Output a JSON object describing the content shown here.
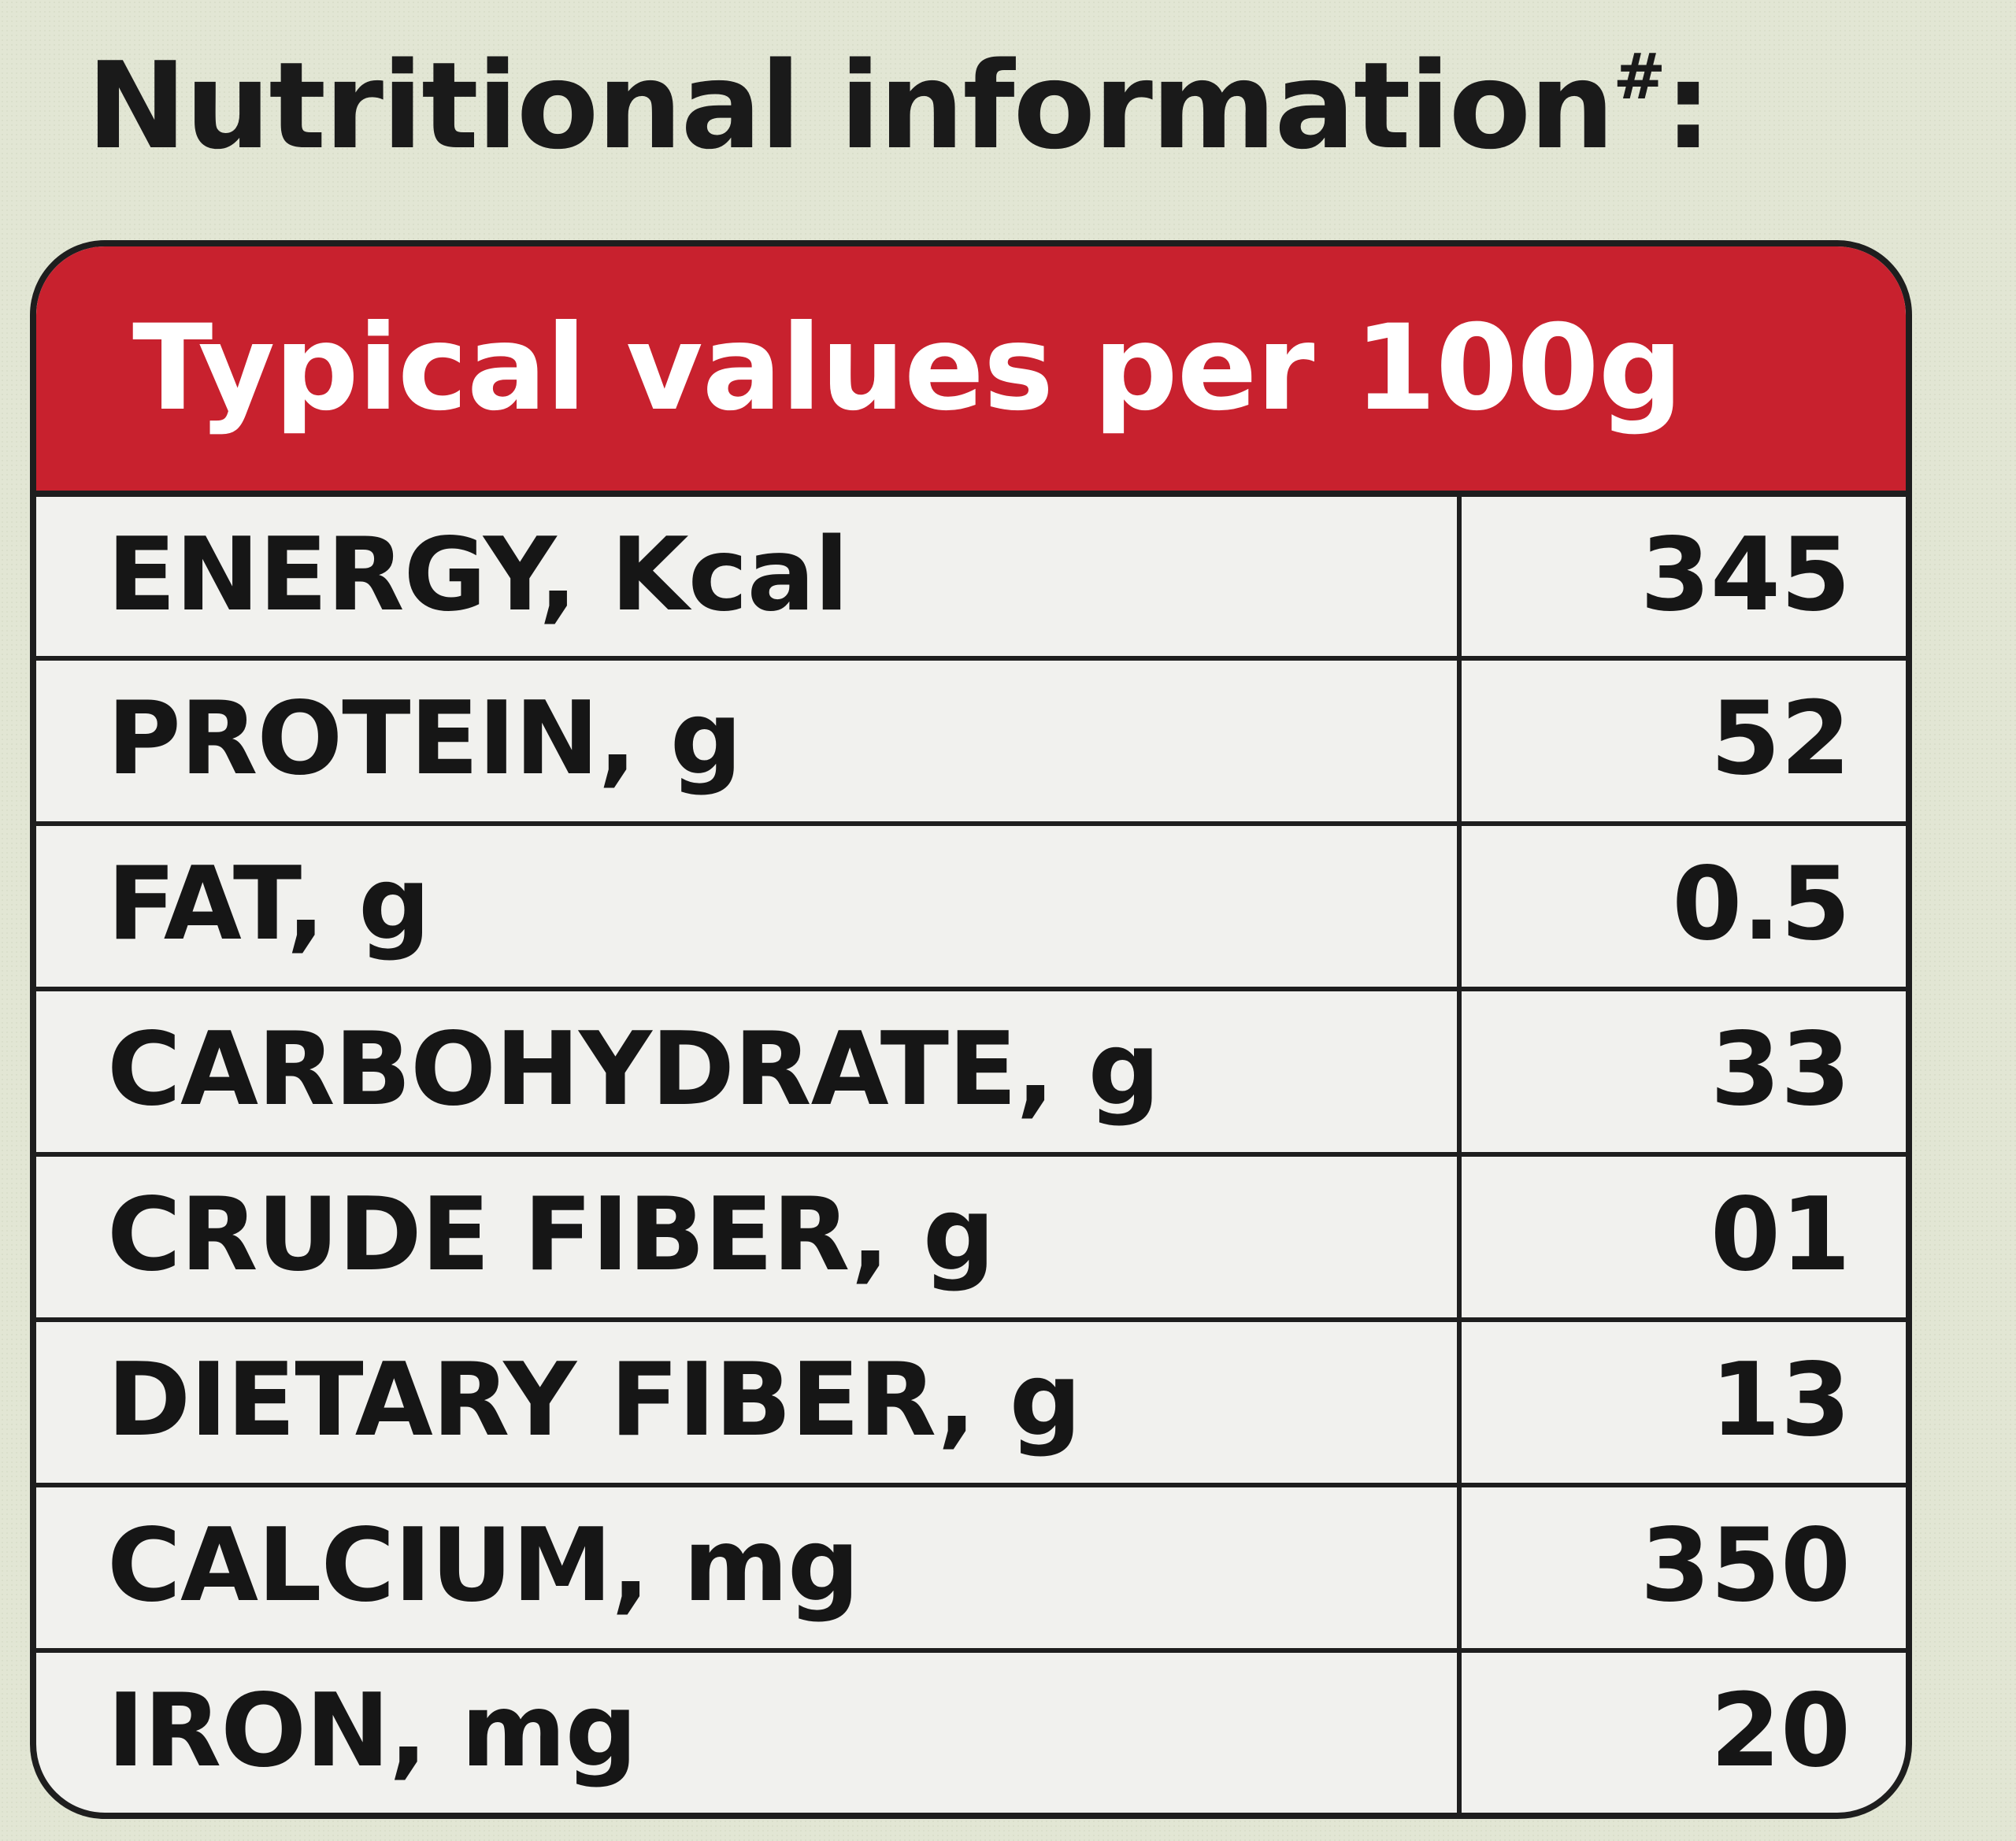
{
  "heading": {
    "text": "Nutritional information",
    "marker": "#",
    "suffix": ":"
  },
  "table": {
    "header": "Typical values per 100g",
    "rows": [
      {
        "label": "ENERGY, Kcal",
        "value": "345"
      },
      {
        "label": "PROTEIN, g",
        "value": "52"
      },
      {
        "label": "FAT, g",
        "value": "0.5"
      },
      {
        "label": "CARBOHYDRATE, g",
        "value": "33"
      },
      {
        "label": "CRUDE FIBER, g",
        "value": "01"
      },
      {
        "label": "DIETARY FIBER, g",
        "value": "13"
      },
      {
        "label": "CALCIUM, mg",
        "value": "350"
      },
      {
        "label": "IRON, mg",
        "value": "20"
      }
    ]
  },
  "colors": {
    "header_bg": "#c8212e",
    "header_text": "#ffffff",
    "table_bg": "#f1f1ee",
    "border": "#1e1e1e",
    "page_bg": "#e2e6d4"
  }
}
